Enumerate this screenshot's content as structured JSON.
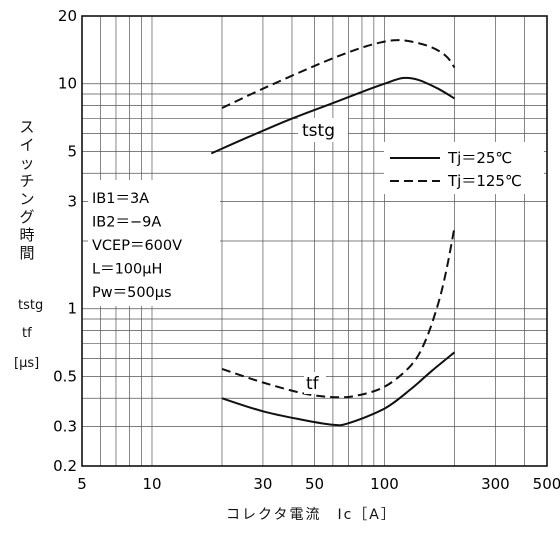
{
  "chart_data": {
    "type": "line",
    "xscale": "log",
    "yscale": "log",
    "xlim": [
      5,
      500
    ],
    "ylim": [
      0.2,
      20
    ],
    "x_ticks": [
      "5",
      "10",
      "30",
      "50",
      "100",
      "300",
      "500"
    ],
    "y_ticks": [
      "0.2",
      "0.3",
      "0.5",
      "1",
      "3",
      "5",
      "10",
      "20"
    ],
    "xlabel": "コレクタ電流　Ic［A］",
    "ylabel_chars": [
      "ス",
      "イ",
      "ッ",
      "チ",
      "ン",
      "グ",
      "時",
      "間"
    ],
    "ylabel_sub": [
      "tstg",
      "tf",
      "[μs]"
    ],
    "grid": true,
    "legend": [
      {
        "label": "Tj＝25℃",
        "dash": "solid"
      },
      {
        "label": "Tj＝125℃",
        "dash": "dashed"
      }
    ],
    "conditions": [
      "IB1＝3A",
      "IB2＝−9A",
      "VCEP＝600V",
      "L＝100μH",
      "Pw＝500μs"
    ],
    "annotations": [
      "tstg",
      "tf"
    ],
    "series": [
      {
        "curve": "tstg",
        "tj": "25℃",
        "dash": "solid",
        "points": [
          [
            18,
            4.9
          ],
          [
            25,
            5.7
          ],
          [
            40,
            7.0
          ],
          [
            60,
            8.2
          ],
          [
            80,
            9.2
          ],
          [
            100,
            10.0
          ],
          [
            120,
            10.6
          ],
          [
            140,
            10.4
          ],
          [
            170,
            9.5
          ],
          [
            200,
            8.6
          ]
        ]
      },
      {
        "curve": "tstg",
        "tj": "125℃",
        "dash": "dashed",
        "points": [
          [
            20,
            7.8
          ],
          [
            30,
            9.5
          ],
          [
            50,
            12.0
          ],
          [
            70,
            13.8
          ],
          [
            90,
            15.0
          ],
          [
            110,
            15.6
          ],
          [
            130,
            15.4
          ],
          [
            160,
            14.5
          ],
          [
            185,
            13.2
          ],
          [
            200,
            11.8
          ]
        ]
      },
      {
        "curve": "tf",
        "tj": "25℃",
        "dash": "solid",
        "points": [
          [
            20,
            0.4
          ],
          [
            30,
            0.35
          ],
          [
            45,
            0.32
          ],
          [
            60,
            0.305
          ],
          [
            70,
            0.31
          ],
          [
            100,
            0.36
          ],
          [
            130,
            0.44
          ],
          [
            160,
            0.53
          ],
          [
            200,
            0.64
          ]
        ]
      },
      {
        "curve": "tf",
        "tj": "125℃",
        "dash": "dashed",
        "points": [
          [
            20,
            0.54
          ],
          [
            30,
            0.47
          ],
          [
            45,
            0.42
          ],
          [
            60,
            0.405
          ],
          [
            75,
            0.41
          ],
          [
            100,
            0.45
          ],
          [
            130,
            0.56
          ],
          [
            150,
            0.72
          ],
          [
            170,
            1.05
          ],
          [
            185,
            1.5
          ],
          [
            200,
            2.3
          ]
        ]
      }
    ]
  }
}
